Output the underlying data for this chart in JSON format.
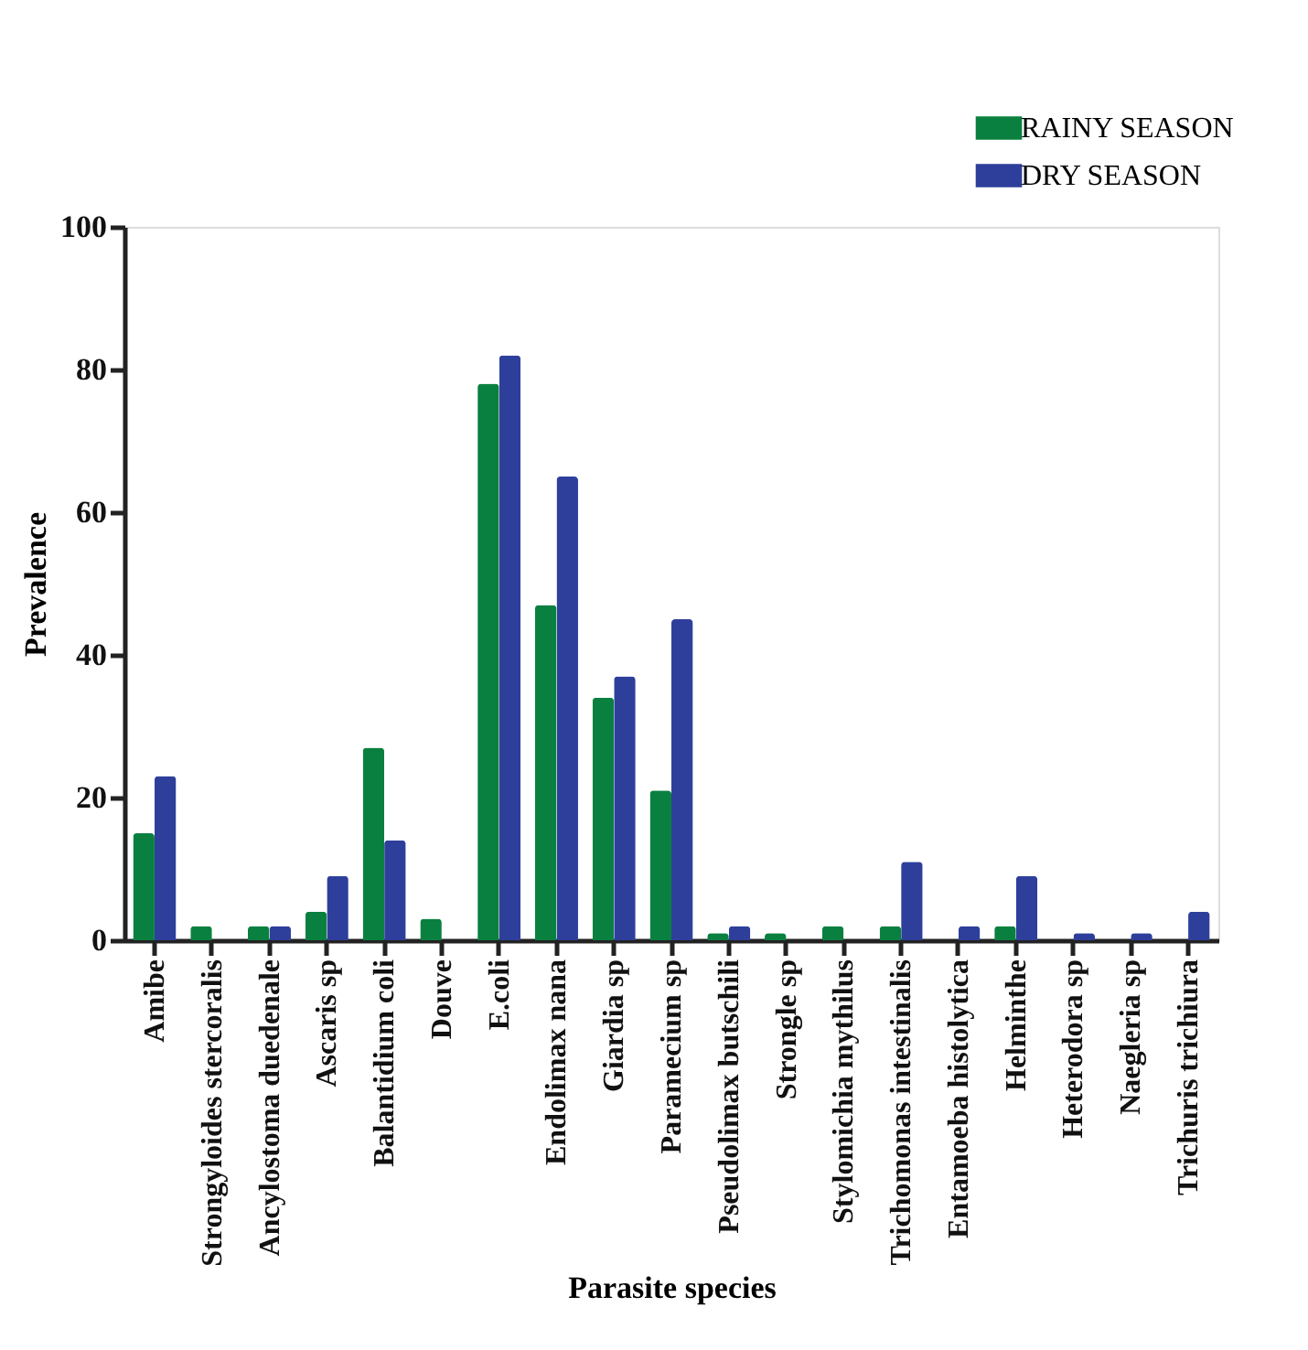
{
  "chart_data": {
    "type": "bar",
    "xlabel": "Parasite species",
    "ylabel": "Prevalence",
    "categories": [
      "Amibe",
      "Strongyloides stercoralis",
      "Ancylostoma duedenale",
      "Ascaris sp",
      "Balantidium coli",
      "Douve",
      "E.coli",
      "Endolimax nana",
      "Giardia sp",
      "Paramecium sp",
      "Pseudolimax butschili",
      "Strongle sp",
      "Stylomichia mythilus",
      "Trichomonas intestinalis",
      "Entamoeba histolytica",
      "Helminthe",
      "Heterodora sp",
      "Naegleria sp",
      "Trichuris trichiura"
    ],
    "series": [
      {
        "name": "RAINY SEASON",
        "color": "#0a8040",
        "values": [
          15,
          2,
          2,
          4,
          27,
          3,
          78,
          47,
          34,
          21,
          1,
          1,
          2,
          2,
          null,
          2,
          null,
          null,
          null
        ]
      },
      {
        "name": "DRY SEASON",
        "color": "#2e3f9b",
        "values": [
          23,
          null,
          2,
          9,
          14,
          null,
          82,
          65,
          37,
          45,
          2,
          null,
          null,
          11,
          2,
          9,
          1,
          1,
          4
        ]
      }
    ],
    "ylim": [
      0,
      100
    ],
    "yticks": [
      0,
      20,
      40,
      60,
      80,
      100
    ],
    "grid": false,
    "legend": "top right"
  }
}
